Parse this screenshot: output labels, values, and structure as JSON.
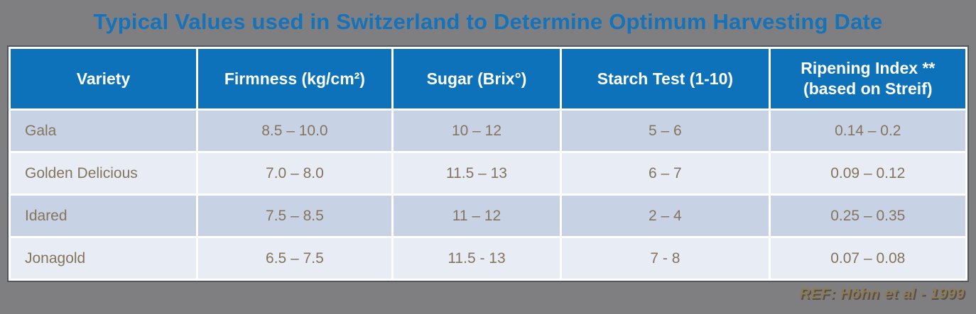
{
  "page": {
    "title": "Typical Values used in Switzerland to Determine Optimum Harvesting Date",
    "reference": "REF: Höhn et al - 1999",
    "colors": {
      "background_gray": "#7f7f82",
      "title_blue": "#1473ba",
      "header_blue": "#0d72b9",
      "row_dark": "#c8d2e5",
      "row_light": "#e8ecf5",
      "cell_text_brown": "#85745c",
      "reference_tan": "#8d7b58",
      "grid_white": "#ffffff"
    }
  },
  "header": {
    "variety": "Variety",
    "firmness": "Firmness (kg/cm²)",
    "sugar": "Sugar (Brix°)",
    "starch": "Starch Test (1-10)",
    "ripening_line1": "Ripening Index **",
    "ripening_line2": "(based on Streif)"
  },
  "chart_data": {
    "type": "table",
    "title": "Typical Values used in Switzerland to Determine Optimum Harvesting Date",
    "columns": [
      "Variety",
      "Firmness (kg/cm²)",
      "Sugar (Brix°)",
      "Starch Test (1-10)",
      "Ripening Index ** (based on Streif)"
    ],
    "rows": [
      [
        "Gala",
        "8.5 – 10.0",
        "10 – 12",
        "5 – 6",
        "0.14 – 0.2"
      ],
      [
        "Golden Delicious",
        "7.0 – 8.0",
        "11.5 – 13",
        "6 – 7",
        "0.09 – 0.12"
      ],
      [
        "Idared",
        "7.5 – 8.5",
        "11 – 12",
        "2 – 4",
        "0.25 – 0.35"
      ],
      [
        "Jonagold",
        "6.5 – 7.5",
        "11.5 - 13",
        "7 - 8",
        "0.07 – 0.08"
      ]
    ],
    "source": "REF: Höhn et al - 1999",
    "legend_position": "none",
    "grid": true
  }
}
